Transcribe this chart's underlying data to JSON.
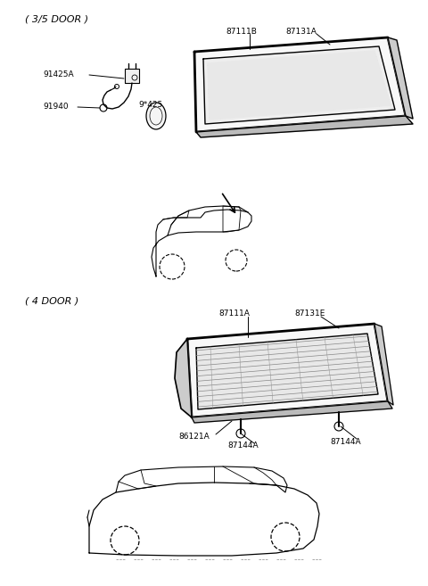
{
  "bg_color": "#ffffff",
  "line_color": "#000000",
  "fig_width": 4.8,
  "fig_height": 6.57,
  "dpi": 100,
  "section1_label": "( 3/5 DOOR )",
  "section2_label": "( 4 DOOR )",
  "label_87111B": "87111B",
  "label_87131A": "87131A",
  "label_91425A": "91425A",
  "label_91940": "91940",
  "label_9425": "9*425",
  "label_87111A": "87111A",
  "label_87131E": "87131E",
  "label_86121A": "86121A",
  "label_87144A_1": "87144A",
  "label_87144A_2": "87144A"
}
